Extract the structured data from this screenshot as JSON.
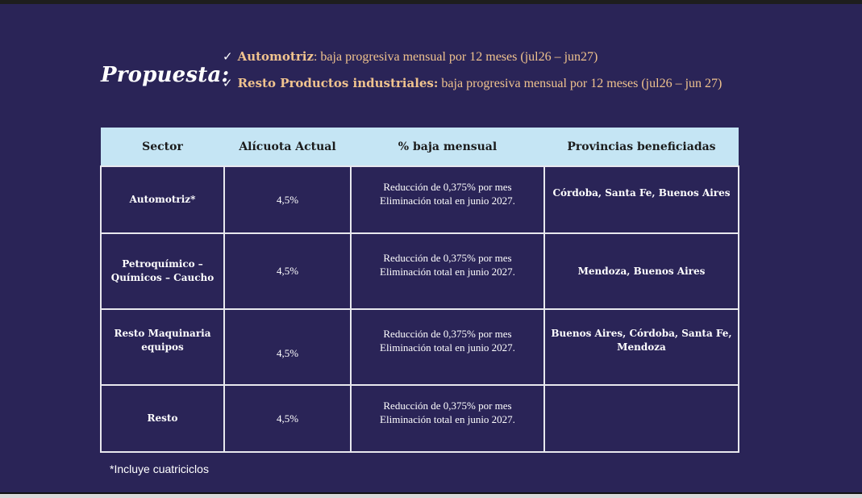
{
  "title": "Propuesta:",
  "bullets": [
    {
      "bold": "Automotriz",
      "text": ": baja progresiva mensual por 12 meses (jul26 – jun27)"
    },
    {
      "bold": "Resto Productos industriales:",
      "text": " baja progresiva mensual por 12 meses (jul26 – jun 27)"
    }
  ],
  "table": {
    "headers": [
      "Sector",
      "Alícuota Actual",
      "% baja mensual",
      "Provincias beneficiadas"
    ],
    "rows": [
      {
        "sector": [
          "Automotriz*"
        ],
        "rate": "4,5%",
        "reduction": [
          "Reducción de 0,375% por mes",
          "Eliminación total en junio 2027."
        ],
        "provinces": [
          "Córdoba, Santa Fe, Buenos Aires"
        ]
      },
      {
        "sector": [
          "Petroquímico –",
          "Químicos – Caucho"
        ],
        "rate": "4,5%",
        "reduction": [
          "Reducción de 0,375% por mes",
          "Eliminación total en junio 2027."
        ],
        "provinces": [
          "Mendoza, Buenos Aires"
        ]
      },
      {
        "sector": [
          "Resto Maquinaria",
          "equipos"
        ],
        "rate": "4,5%",
        "reduction": [
          "Reducción de 0,375% por mes",
          "Eliminación total en junio 2027."
        ],
        "provinces": [
          "Buenos Aires, Córdoba, Santa Fe,",
          "Mendoza"
        ]
      },
      {
        "sector": [
          "Resto"
        ],
        "rate": "4,5%",
        "reduction": [
          "Reducción de 0,375% por mes",
          "Eliminación total en junio 2027."
        ],
        "provinces": []
      }
    ]
  },
  "footnote": "*Incluye cuatriciclos"
}
